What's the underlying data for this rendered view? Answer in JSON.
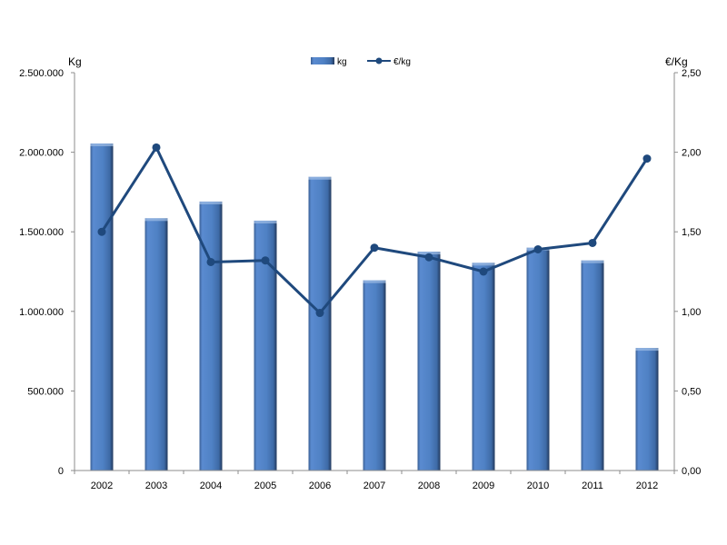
{
  "chart_data": {
    "type": "bar",
    "categories": [
      "2002",
      "2003",
      "2004",
      "2005",
      "2006",
      "2007",
      "2008",
      "2009",
      "2010",
      "2011",
      "2012"
    ],
    "series": [
      {
        "name": "kg",
        "type": "bar",
        "axis": "left",
        "values": [
          2055000,
          1585000,
          1690000,
          1570000,
          1845000,
          1195000,
          1375000,
          1305000,
          1400000,
          1320000,
          770000
        ]
      },
      {
        "name": "€/kg",
        "type": "line",
        "axis": "right",
        "values": [
          1.5,
          2.03,
          1.31,
          1.32,
          0.99,
          1.4,
          1.34,
          1.25,
          1.39,
          1.43,
          1.96
        ]
      }
    ],
    "y_left": {
      "label": "Kg",
      "ylim": [
        0,
        2500000
      ],
      "ticks": [
        0,
        500000,
        1000000,
        1500000,
        2000000,
        2500000
      ],
      "tick_labels": [
        "0",
        "500.000",
        "1.000.000",
        "1.500.000",
        "2.000.000",
        "2.500.000"
      ]
    },
    "y_right": {
      "label": "€/Kg",
      "ylim": [
        0,
        2.5
      ],
      "ticks": [
        0,
        0.5,
        1,
        1.5,
        2,
        2.5
      ],
      "tick_labels": [
        "0,00",
        "0,50",
        "1,00",
        "1,50",
        "2,00",
        "2,50"
      ]
    },
    "legend_position": "top-center",
    "grid": false,
    "colors": {
      "bar": "#4f81bd",
      "bar_dark": "#2c4d75",
      "line": "#1f497d"
    }
  }
}
